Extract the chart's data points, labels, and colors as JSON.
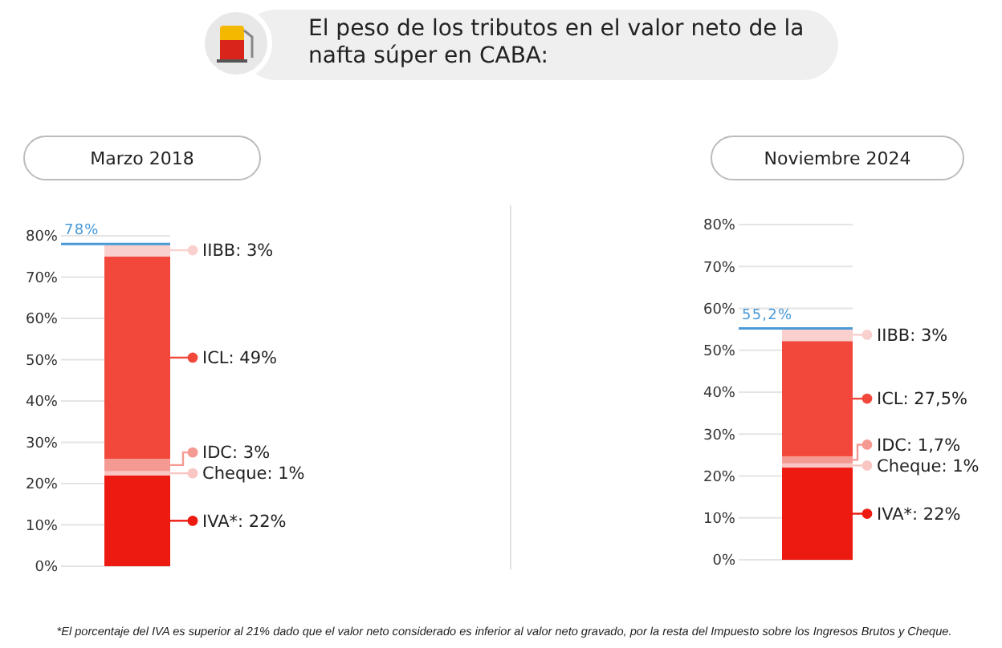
{
  "chart_data": [
    {
      "type": "other",
      "title": "El peso de los tributos en el valor neto de la nafta súper en CABA:",
      "annotations": [
        "*El porcentaje del IVA es superior al 21% dado que el valor neto considerado es inferior al valor neto gravado, por la resta del Impuesto sobre los Ingresos Brutos y Cheque."
      ]
    },
    {
      "type": "bar",
      "title": "Marzo 2018",
      "stacked": true,
      "categories": [
        null
      ],
      "ylim": [
        0,
        80
      ],
      "yticks": [
        {
          "value": 0,
          "label": "0%"
        },
        {
          "value": 10,
          "label": "10%"
        },
        {
          "value": 20,
          "label": "20%"
        },
        {
          "value": 30,
          "label": "30%"
        },
        {
          "value": 40,
          "label": "40%"
        },
        {
          "value": 50,
          "label": "50%"
        },
        {
          "value": 60,
          "label": "60%"
        },
        {
          "value": 70,
          "label": "70%"
        },
        {
          "value": 80,
          "label": "80%"
        }
      ],
      "grid": "y",
      "legend": "right",
      "series": [
        {
          "name": "IVA*: 22%",
          "color": "#ec1a10",
          "values": [
            22
          ]
        },
        {
          "name": "Cheque: 1%",
          "color": "#f9c6c3",
          "values": [
            1
          ]
        },
        {
          "name": "IDC: 3%",
          "color": "#f59a92",
          "values": [
            3
          ]
        },
        {
          "name": "ICL: 49%",
          "color": "#f1483b",
          "values": [
            49
          ]
        },
        {
          "name": "IIBB: 3%",
          "color": "#f9d0cd",
          "values": [
            3
          ]
        }
      ],
      "ref_lines": [
        {
          "axis": "y",
          "value": 78,
          "label": "78%",
          "color": "#4a9ad8"
        }
      ]
    },
    {
      "type": "bar",
      "title": "Noviembre 2024",
      "stacked": true,
      "categories": [
        null
      ],
      "ylim": [
        0,
        80
      ],
      "yticks": [
        {
          "value": 0,
          "label": "0%"
        },
        {
          "value": 10,
          "label": "10%"
        },
        {
          "value": 20,
          "label": "20%"
        },
        {
          "value": 30,
          "label": "30%"
        },
        {
          "value": 40,
          "label": "40%"
        },
        {
          "value": 50,
          "label": "50%"
        },
        {
          "value": 60,
          "label": "60%"
        },
        {
          "value": 70,
          "label": "70%"
        },
        {
          "value": 80,
          "label": "80%"
        }
      ],
      "grid": "y",
      "legend": "right",
      "series": [
        {
          "name": "IVA*: 22%",
          "color": "#ec1a10",
          "values": [
            22
          ]
        },
        {
          "name": "Cheque: 1%",
          "color": "#f9c6c3",
          "values": [
            1
          ]
        },
        {
          "name": "IDC: 1,7%",
          "color": "#f59a92",
          "values": [
            1.7
          ]
        },
        {
          "name": "ICL: 27,5%",
          "color": "#f1483b",
          "values": [
            27.5
          ]
        },
        {
          "name": "IIBB: 3%",
          "color": "#f9d0cd",
          "values": [
            3
          ]
        }
      ],
      "ref_lines": [
        {
          "axis": "y",
          "value": 55.2,
          "label": "55,2%",
          "color": "#4a9ad8"
        }
      ]
    }
  ]
}
